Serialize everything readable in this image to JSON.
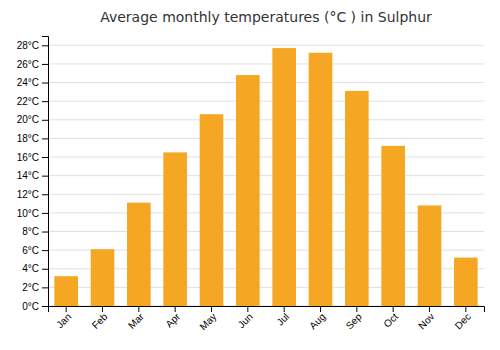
{
  "chart_data": {
    "type": "bar",
    "title": "Average monthly temperatures (°C ) in Sulphur",
    "categories": [
      "Jan",
      "Feb",
      "Mar",
      "Apr",
      "May",
      "Jun",
      "Jul",
      "Aug",
      "Sep",
      "Oct",
      "Nov",
      "Dec"
    ],
    "values": [
      3.2,
      6.1,
      11.1,
      16.5,
      20.6,
      24.8,
      27.7,
      27.2,
      23.1,
      17.2,
      10.8,
      5.2
    ],
    "color": "#F5A623",
    "ylim": [
      0,
      29
    ],
    "yticks": [
      {
        "value": 0,
        "label": "0°C"
      },
      {
        "value": 2,
        "label": "2°C"
      },
      {
        "value": 4,
        "label": "4°C"
      },
      {
        "value": 6,
        "label": "6°C"
      },
      {
        "value": 8,
        "label": "8°C"
      },
      {
        "value": 10,
        "label": "10°C"
      },
      {
        "value": 12,
        "label": "12°C"
      },
      {
        "value": 14,
        "label": "14°C"
      },
      {
        "value": 16,
        "label": "16°C"
      },
      {
        "value": 18,
        "label": "18°C"
      },
      {
        "value": 20,
        "label": "20°C"
      },
      {
        "value": 22,
        "label": "22°C"
      },
      {
        "value": 24,
        "label": "24°C"
      },
      {
        "value": 26,
        "label": "26°C"
      },
      {
        "value": 28,
        "label": "28°C"
      }
    ],
    "grid": true
  }
}
